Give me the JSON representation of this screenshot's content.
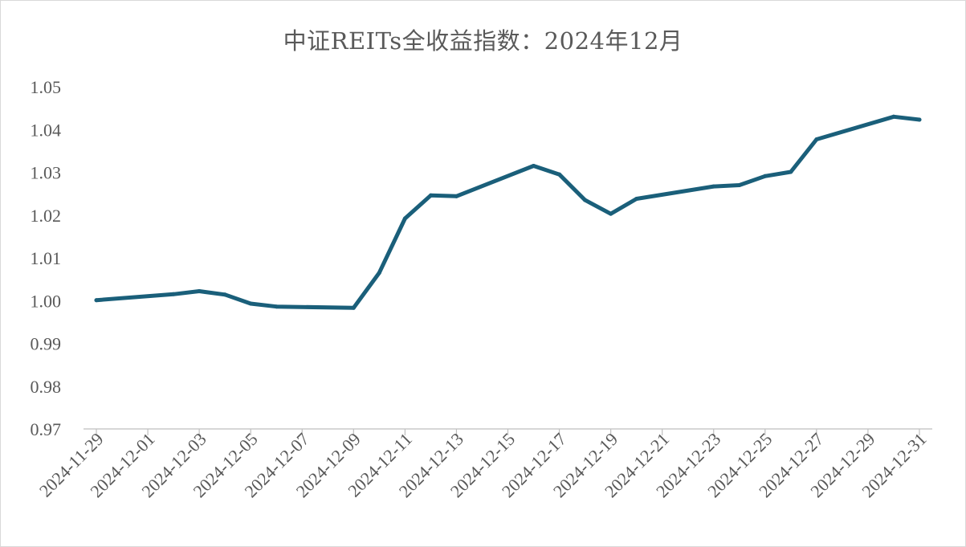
{
  "chart_data": {
    "type": "line",
    "title": "中证REITs全收益指数：2024年12月",
    "xlabel": "",
    "ylabel": "",
    "ylim": [
      0.97,
      1.05
    ],
    "yticks": [
      "0.97",
      "0.98",
      "0.99",
      "1.00",
      "1.01",
      "1.02",
      "1.03",
      "1.04",
      "1.05"
    ],
    "xticks": [
      "2024-11-29",
      "2024-12-01",
      "2024-12-03",
      "2024-12-05",
      "2024-12-07",
      "2024-12-09",
      "2024-12-11",
      "2024-12-13",
      "2024-12-15",
      "2024-12-17",
      "2024-12-19",
      "2024-12-21",
      "2024-12-23",
      "2024-12-25",
      "2024-12-27",
      "2024-12-29",
      "2024-12-31"
    ],
    "grid": false,
    "legend": "none",
    "line_color": "#1a5f7a",
    "series": [
      {
        "x": [
          "2024-11-29",
          "2024-12-02",
          "2024-12-03",
          "2024-12-04",
          "2024-12-05",
          "2024-12-06",
          "2024-12-09",
          "2024-12-10",
          "2024-12-11",
          "2024-12-12",
          "2024-12-13",
          "2024-12-16",
          "2024-12-17",
          "2024-12-18",
          "2024-12-19",
          "2024-12-20",
          "2024-12-23",
          "2024-12-24",
          "2024-12-25",
          "2024-12-26",
          "2024-12-27",
          "2024-12-30",
          "2024-12-31"
        ],
        "values": [
          1.0001,
          1.0015,
          1.0022,
          1.0014,
          0.9993,
          0.9986,
          0.9983,
          1.0065,
          1.0192,
          1.0246,
          1.0244,
          1.0315,
          1.0295,
          1.0235,
          1.0203,
          1.0238,
          1.0267,
          1.027,
          1.0291,
          1.0301,
          1.0377,
          1.043,
          1.0423
        ]
      }
    ]
  }
}
